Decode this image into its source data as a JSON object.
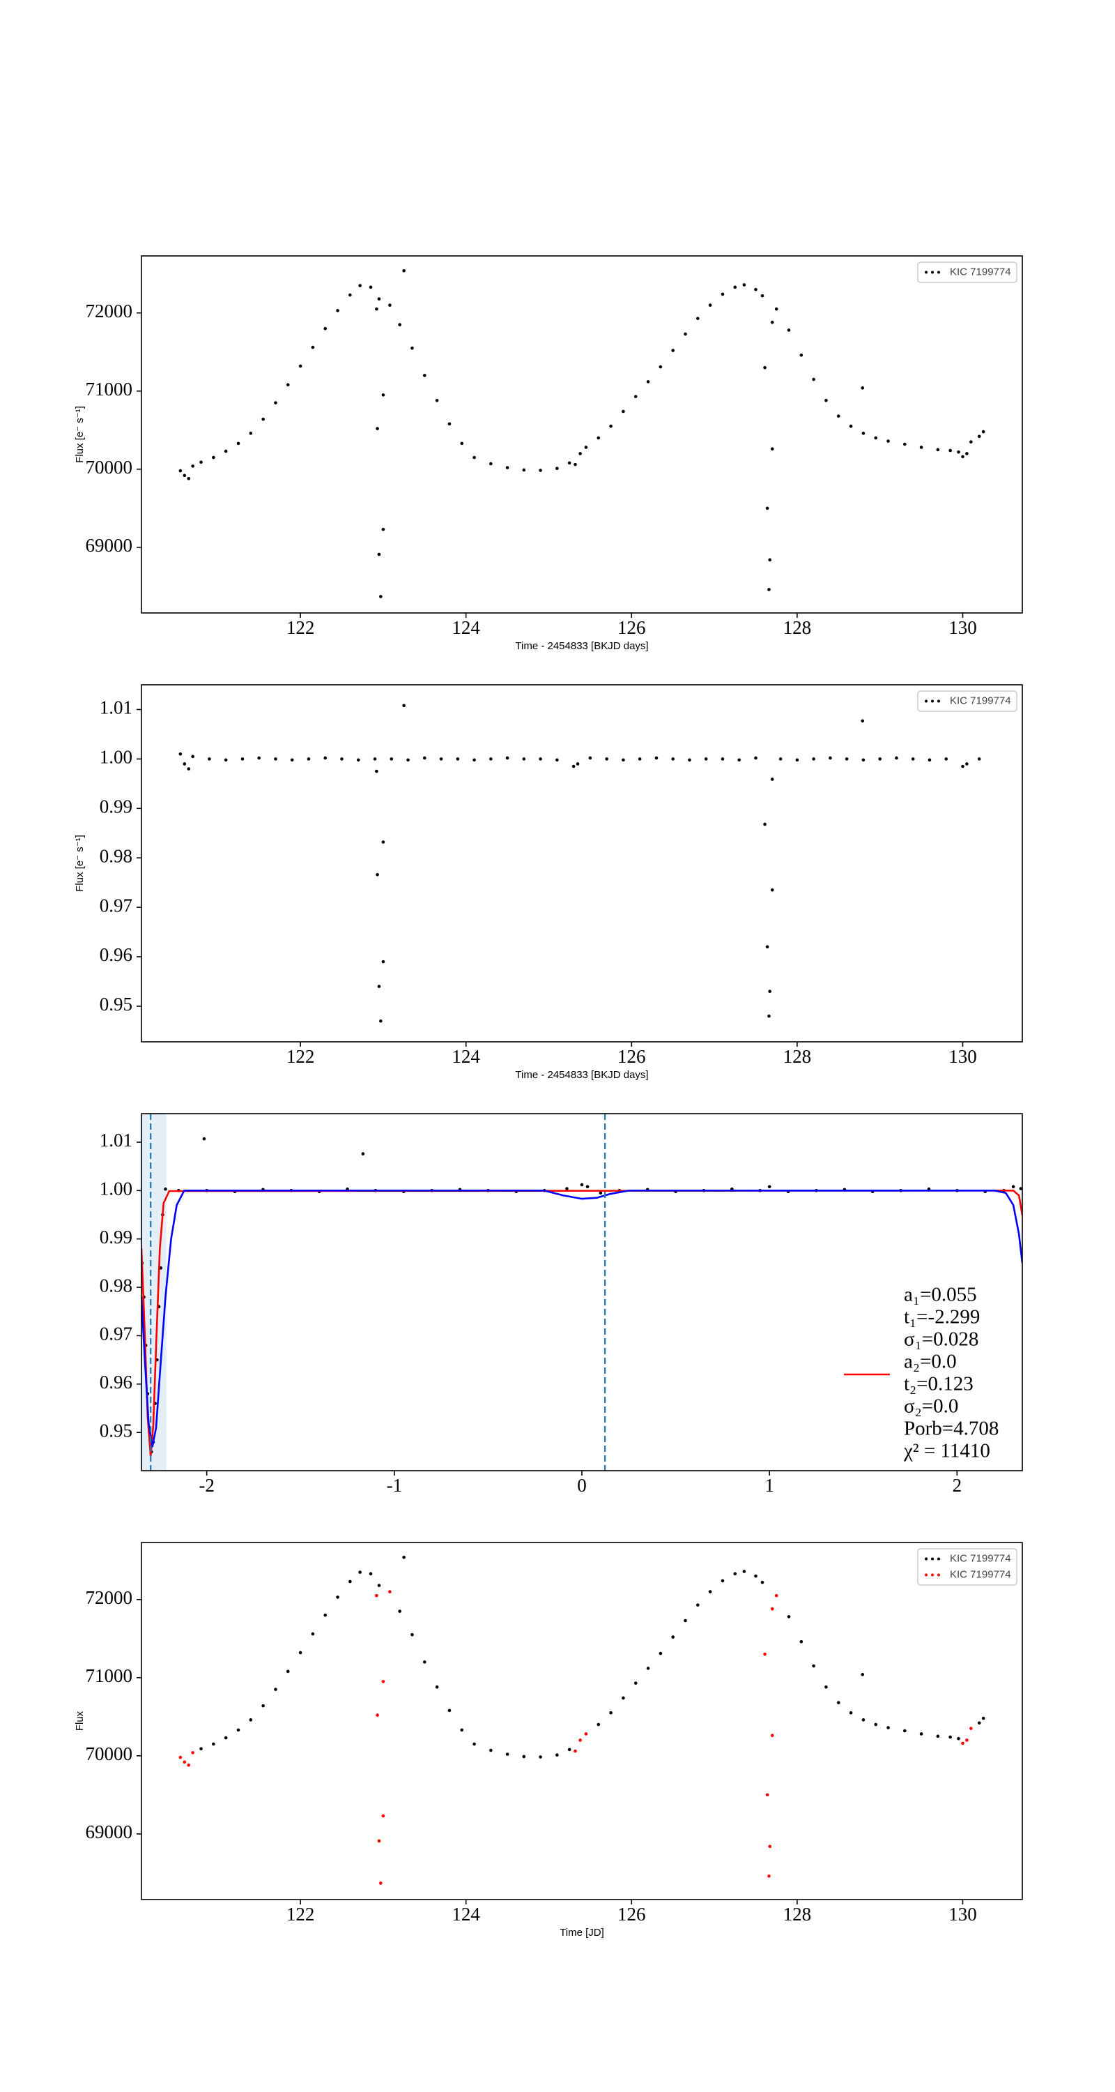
{
  "chart_data": [
    {
      "type": "scatter",
      "x_label": "Time - 2454833 [BKJD days]",
      "y_label": "Flux [e⁻ s⁻¹]",
      "xlim": [
        120.08,
        130.72
      ],
      "ylim": [
        68160,
        72730
      ],
      "xticks": [
        122,
        124,
        126,
        128,
        130
      ],
      "yticks": [
        69000,
        70000,
        71000,
        72000
      ],
      "legend": "upper right",
      "legend_frame": true,
      "series": [
        {
          "name": "KIC 7199774",
          "color": "#000000",
          "style": "points",
          "x": [
            120.55,
            120.6,
            120.65,
            120.7,
            120.8,
            120.95,
            121.1,
            121.25,
            121.4,
            121.55,
            121.7,
            121.85,
            122.0,
            122.15,
            122.3,
            122.45,
            122.6,
            122.72,
            122.85,
            122.95,
            123.08,
            123.2,
            123.35,
            123.5,
            123.65,
            123.8,
            123.95,
            124.1,
            124.3,
            124.5,
            124.7,
            124.9,
            125.1,
            125.25,
            125.32,
            125.38,
            125.45,
            125.6,
            125.75,
            125.9,
            126.05,
            126.2,
            126.35,
            126.5,
            126.65,
            126.8,
            126.95,
            127.1,
            127.25,
            127.36,
            127.5,
            127.58,
            127.75,
            127.9,
            128.05,
            128.2,
            128.35,
            128.5,
            128.65,
            128.8,
            128.95,
            129.1,
            129.3,
            129.5,
            129.7,
            129.85,
            129.95,
            130.0,
            130.05,
            130.1,
            130.2,
            130.25,
            122.92,
            122.93,
            123.0,
            122.95,
            122.97,
            123.0,
            123.25,
            127.61,
            127.7,
            127.7,
            127.64,
            127.67,
            127.66,
            128.79
          ],
          "y": [
            69980,
            69920,
            69880,
            70040,
            70090,
            70150,
            70230,
            70330,
            70460,
            70640,
            70850,
            71080,
            71320,
            71560,
            71800,
            72030,
            72230,
            72350,
            72330,
            72180,
            72100,
            71850,
            71550,
            71200,
            70880,
            70580,
            70330,
            70150,
            70070,
            70020,
            69990,
            69985,
            70010,
            70080,
            70060,
            70200,
            70280,
            70400,
            70550,
            70740,
            70930,
            71120,
            71310,
            71520,
            71730,
            71930,
            72100,
            72240,
            72330,
            72360,
            72300,
            72220,
            72050,
            71780,
            71460,
            71150,
            70880,
            70680,
            70550,
            70460,
            70400,
            70360,
            70320,
            70280,
            70250,
            70240,
            70220,
            70160,
            70200,
            70350,
            70420,
            70480,
            72050,
            70520,
            70950,
            68910,
            68370,
            69230,
            72540,
            71300,
            71880,
            70260,
            69500,
            68840,
            68460,
            71040
          ]
        }
      ]
    },
    {
      "type": "scatter",
      "x_label": "Time - 2454833 [BKJD days]",
      "y_label": "Flux [e⁻ s⁻¹]",
      "xlim": [
        120.08,
        130.72
      ],
      "ylim": [
        0.9428,
        1.015
      ],
      "xticks": [
        122,
        124,
        126,
        128,
        130
      ],
      "yticks": [
        0.95,
        0.96,
        0.97,
        0.98,
        0.99,
        {
          "value": 1,
          "label": "1.00"
        },
        1.01
      ],
      "legend": "upper right",
      "legend_frame": true,
      "series": [
        {
          "name": "KIC 7199774",
          "color": "#000000",
          "style": "points",
          "x": [
            120.55,
            120.6,
            120.65,
            120.7,
            120.9,
            121.1,
            121.3,
            121.5,
            121.7,
            121.9,
            122.1,
            122.3,
            122.5,
            122.7,
            122.9,
            123.1,
            123.3,
            123.5,
            123.7,
            123.9,
            124.1,
            124.3,
            124.5,
            124.7,
            124.9,
            125.1,
            125.3,
            125.35,
            125.5,
            125.7,
            125.9,
            126.1,
            126.3,
            126.5,
            126.7,
            126.9,
            127.1,
            127.3,
            127.5,
            127.8,
            128.0,
            128.2,
            128.4,
            128.6,
            128.8,
            129.0,
            129.2,
            129.4,
            129.6,
            129.8,
            130.0,
            130.05,
            130.2,
            122.92,
            123.0,
            122.93,
            123.0,
            122.95,
            122.97,
            123.25,
            127.61,
            127.7,
            127.7,
            127.64,
            127.67,
            127.66,
            128.79
          ],
          "y": [
            1.001,
            0.999,
            0.998,
            1.0005,
            1.0,
            0.9998,
            1.0,
            1.0002,
            1.0,
            0.9998,
            1.0,
            1.0002,
            1.0,
            0.9998,
            1.0,
            1.0,
            0.9998,
            1.0002,
            1.0,
            1.0,
            0.9998,
            1.0,
            1.0002,
            1.0,
            1.0,
            0.9998,
            0.9985,
            0.999,
            1.0002,
            1.0,
            0.9998,
            1.0,
            1.0002,
            1.0,
            0.9998,
            1.0,
            1.0,
            0.9998,
            1.0002,
            1.0,
            0.9998,
            1.0,
            1.0002,
            1.0,
            0.9998,
            1.0,
            1.0002,
            1.0,
            0.9998,
            1.0,
            0.9985,
            0.999,
            1.0,
            0.9975,
            0.9832,
            0.9766,
            0.959,
            0.954,
            0.947,
            1.0108,
            0.9868,
            0.9959,
            0.9735,
            0.962,
            0.953,
            0.948,
            1.0077
          ]
        }
      ]
    },
    {
      "type": "scatter",
      "xlim": [
        -2.348,
        2.348
      ],
      "ylim": [
        0.9421,
        1.0159
      ],
      "xticks": [
        -2,
        -1,
        0,
        1,
        2
      ],
      "yticks": [
        0.95,
        0.96,
        0.97,
        0.98,
        0.99,
        {
          "value": 1,
          "label": "1.00"
        },
        1.01
      ],
      "legend": "lower right",
      "legend_frame": false,
      "vlines": [
        -2.299,
        0.123
      ],
      "vline_color": "#1f77b4",
      "span": [
        -2.383,
        -2.215
      ],
      "span_color": "#1f77b4",
      "series": [
        {
          "color": "#000000",
          "style": "points",
          "x": [
            -2.345,
            -2.335,
            -2.325,
            -2.315,
            -2.305,
            -2.295,
            -2.285,
            -2.275,
            -2.265,
            -2.255,
            -2.245,
            -2.235,
            -2.22,
            -2.15,
            -2.0,
            -1.85,
            -1.7,
            -1.55,
            -1.4,
            -1.25,
            -1.1,
            -0.95,
            -0.8,
            -0.65,
            -0.5,
            -0.35,
            -0.2,
            -0.08,
            0.0,
            0.03,
            0.1,
            0.2,
            0.35,
            0.5,
            0.65,
            0.8,
            0.95,
            1.0,
            1.1,
            1.25,
            1.4,
            1.55,
            1.7,
            1.85,
            2.0,
            2.15,
            2.25,
            2.3,
            2.34,
            -2.014,
            -1.167
          ],
          "y": [
            0.985,
            0.978,
            0.968,
            0.958,
            0.95,
            0.946,
            0.948,
            0.956,
            0.965,
            0.976,
            0.984,
            0.995,
            1.0003,
            1.0,
            1.0,
            0.9998,
            1.0002,
            1.0,
            0.9998,
            1.0003,
            1.0,
            0.9998,
            1.0,
            1.0002,
            1.0,
            0.9998,
            1.0,
            1.0004,
            1.0012,
            1.0008,
            0.9995,
            1.0,
            1.0002,
            0.9998,
            1.0,
            1.0003,
            1.0,
            1.0008,
            0.9998,
            1.0,
            1.0002,
            0.9998,
            1.0,
            1.0003,
            1.0,
            0.9998,
            1.0,
            1.0008,
            1.0004,
            1.0107,
            1.0076
          ]
        },
        {
          "name": [
            "a₁=0.055",
            "t₁=-2.299",
            "σ₁=0.028",
            "a₂=0.0",
            "t₂=0.123",
            "σ₂=0.0",
            "Porb=4.708",
            "χ² = 11410"
          ],
          "color": "#ff0000",
          "style": "line",
          "x": [
            -2.348,
            -2.33,
            -2.315,
            -2.299,
            -2.285,
            -2.27,
            -2.25,
            -2.23,
            -2.2,
            2.3,
            2.33,
            2.348
          ],
          "y": [
            0.988,
            0.9702,
            0.9533,
            0.945,
            0.9515,
            0.9678,
            0.988,
            0.9974,
            0.9999,
            1.0,
            0.999,
            0.9949
          ]
        },
        {
          "color": "#0000ff",
          "style": "line",
          "x": [
            -2.348,
            -2.33,
            -2.31,
            -2.29,
            -2.27,
            -2.25,
            -2.22,
            -2.19,
            -2.16,
            -2.12,
            -0.2,
            -0.1,
            0.0,
            0.08,
            0.15,
            0.25,
            2.2,
            2.26,
            2.3,
            2.33,
            2.348
          ],
          "y": [
            0.978,
            0.965,
            0.952,
            0.947,
            0.951,
            0.962,
            0.978,
            0.99,
            0.997,
            1.0,
            1.0,
            0.999,
            0.9983,
            0.9985,
            0.9993,
            1.0,
            1.0,
            0.9995,
            0.997,
            0.991,
            0.985
          ]
        }
      ]
    },
    {
      "type": "scatter",
      "x_label": "Time [JD]",
      "y_label": "Flux",
      "xlim": [
        120.08,
        130.72
      ],
      "ylim": [
        68160,
        72730
      ],
      "xticks": [
        122,
        124,
        126,
        128,
        130
      ],
      "yticks": [
        69000,
        70000,
        71000,
        72000
      ],
      "legend": "upper right",
      "legend_frame": true,
      "series": [
        {
          "name": "KIC 7199774",
          "color": "#000000",
          "style": "points",
          "x": [
            120.8,
            120.95,
            121.1,
            121.25,
            121.4,
            121.55,
            121.7,
            121.85,
            122.0,
            122.15,
            122.3,
            122.45,
            122.6,
            122.72,
            122.85,
            122.95,
            123.2,
            123.35,
            123.5,
            123.65,
            123.8,
            123.95,
            124.1,
            124.3,
            124.5,
            124.7,
            124.9,
            125.1,
            125.25,
            125.6,
            125.75,
            125.9,
            126.05,
            126.2,
            126.35,
            126.5,
            126.65,
            126.8,
            126.95,
            127.1,
            127.25,
            127.36,
            127.5,
            127.58,
            127.9,
            128.05,
            128.2,
            128.35,
            128.5,
            128.65,
            128.8,
            128.95,
            129.1,
            129.3,
            129.5,
            129.7,
            129.85,
            129.95,
            130.2,
            130.25,
            123.25,
            128.79
          ],
          "y": [
            70090,
            70150,
            70230,
            70330,
            70460,
            70640,
            70850,
            71080,
            71320,
            71560,
            71800,
            72030,
            72230,
            72350,
            72330,
            72180,
            71850,
            71550,
            71200,
            70880,
            70580,
            70330,
            70150,
            70070,
            70020,
            69990,
            69985,
            70010,
            70080,
            70400,
            70550,
            70740,
            70930,
            71120,
            71310,
            71520,
            71730,
            71930,
            72100,
            72240,
            72330,
            72360,
            72300,
            72220,
            71780,
            71460,
            71150,
            70880,
            70680,
            70550,
            70460,
            70400,
            70360,
            70320,
            70280,
            70250,
            70240,
            70220,
            70420,
            70480,
            72540,
            71040
          ]
        },
        {
          "name": "KIC 7199774",
          "color": "#ff0000",
          "style": "points",
          "x": [
            120.55,
            120.6,
            120.65,
            120.7,
            123.08,
            125.32,
            125.38,
            125.45,
            127.75,
            130.0,
            130.05,
            130.1,
            122.92,
            122.93,
            123.0,
            122.95,
            122.97,
            123.0,
            127.61,
            127.7,
            127.7,
            127.64,
            127.67,
            127.66
          ],
          "y": [
            69980,
            69920,
            69880,
            70040,
            72100,
            70060,
            70200,
            70280,
            72050,
            70160,
            70200,
            70350,
            72050,
            70520,
            70950,
            68910,
            68370,
            69230,
            71300,
            71880,
            70260,
            69500,
            68840,
            68460
          ]
        }
      ]
    }
  ]
}
